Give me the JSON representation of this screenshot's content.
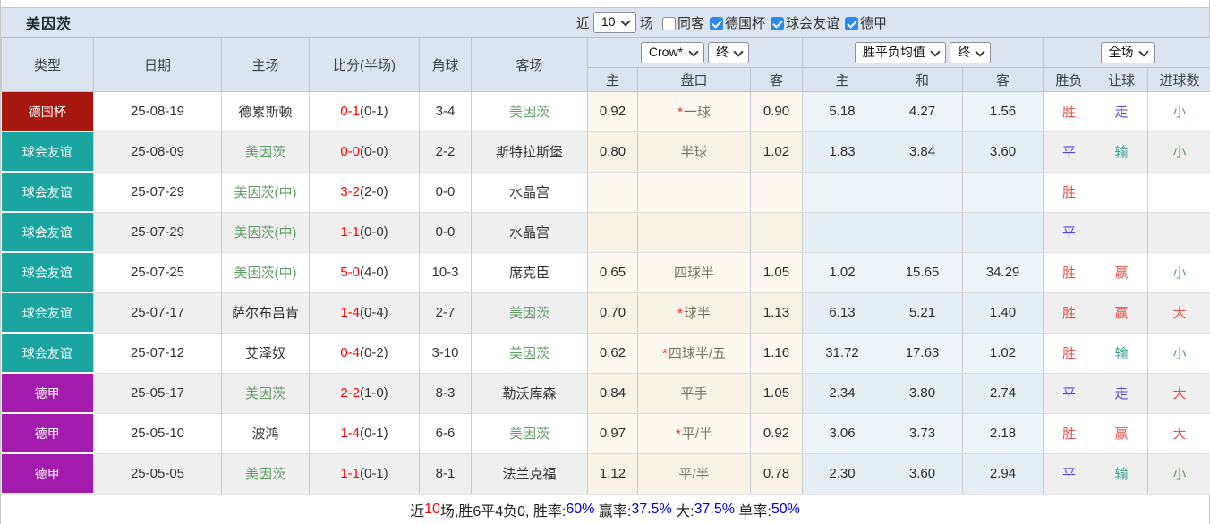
{
  "header": {
    "title": "美因茨",
    "recent_prefix": "近",
    "recent_value": "10",
    "recent_suffix": "场",
    "filters": [
      {
        "label": "同客",
        "checked": false
      },
      {
        "label": "德国杯",
        "checked": true
      },
      {
        "label": "球会友谊",
        "checked": true
      },
      {
        "label": "德甲",
        "checked": true
      }
    ]
  },
  "table": {
    "columns": [
      "类型",
      "日期",
      "主场",
      "比分(半场)",
      "角球",
      "客场"
    ],
    "asian_group": {
      "selects": [
        "Crow*",
        "终"
      ],
      "sub": [
        "主",
        "盘口",
        "客"
      ]
    },
    "europe_group": {
      "selects": [
        "胜平负均值",
        "终"
      ],
      "sub": [
        "主",
        "和",
        "客"
      ]
    },
    "result_group": {
      "selects": [
        "全场"
      ],
      "sub": [
        "胜负",
        "让球",
        "进球数"
      ]
    },
    "rows": [
      {
        "league": "德国杯",
        "league_key": "cup",
        "date": "25-08-19",
        "home": "德累斯顿",
        "home_self": false,
        "score": "0-1",
        "half": "(0-1)",
        "corners": "3-4",
        "away": "美因茨",
        "away_self": true,
        "ah_home": "0.92",
        "ah_star": true,
        "ah_line": "一球",
        "ah_away": "0.90",
        "eu_home": "5.18",
        "eu_draw": "4.27",
        "eu_away": "1.56",
        "result": "胜",
        "result_color": "red",
        "handicap_result": "走",
        "handicap_color": "blue",
        "goals_result": "小",
        "goals_color": "green"
      },
      {
        "league": "球会友谊",
        "league_key": "friendly",
        "date": "25-08-09",
        "home": "美因茨",
        "home_self": true,
        "score": "0-0",
        "half": "(0-0)",
        "corners": "2-2",
        "away": "斯特拉斯堡",
        "away_self": false,
        "ah_home": "0.80",
        "ah_star": false,
        "ah_line": "半球",
        "ah_away": "1.02",
        "eu_home": "1.83",
        "eu_draw": "3.84",
        "eu_away": "3.60",
        "result": "平",
        "result_color": "blue",
        "handicap_result": "输",
        "handicap_color": "teal",
        "goals_result": "小",
        "goals_color": "green"
      },
      {
        "league": "球会友谊",
        "league_key": "friendly",
        "date": "25-07-29",
        "home": "美因茨(中)",
        "home_self": true,
        "score": "3-2",
        "half": "(2-0)",
        "corners": "0-0",
        "away": "水晶宫",
        "away_self": false,
        "ah_home": "",
        "ah_star": false,
        "ah_line": "",
        "ah_away": "",
        "eu_home": "",
        "eu_draw": "",
        "eu_away": "",
        "result": "胜",
        "result_color": "red",
        "handicap_result": "",
        "handicap_color": "",
        "goals_result": "",
        "goals_color": ""
      },
      {
        "league": "球会友谊",
        "league_key": "friendly",
        "date": "25-07-29",
        "home": "美因茨(中)",
        "home_self": true,
        "score": "1-1",
        "half": "(0-0)",
        "corners": "0-0",
        "away": "水晶宫",
        "away_self": false,
        "ah_home": "",
        "ah_star": false,
        "ah_line": "",
        "ah_away": "",
        "eu_home": "",
        "eu_draw": "",
        "eu_away": "",
        "result": "平",
        "result_color": "blue",
        "handicap_result": "",
        "handicap_color": "",
        "goals_result": "",
        "goals_color": ""
      },
      {
        "league": "球会友谊",
        "league_key": "friendly",
        "date": "25-07-25",
        "home": "美因茨(中)",
        "home_self": true,
        "score": "5-0",
        "half": "(4-0)",
        "corners": "10-3",
        "away": "席克臣",
        "away_self": false,
        "ah_home": "0.65",
        "ah_star": false,
        "ah_line": "四球半",
        "ah_away": "1.05",
        "eu_home": "1.02",
        "eu_draw": "15.65",
        "eu_away": "34.29",
        "result": "胜",
        "result_color": "red",
        "handicap_result": "赢",
        "handicap_color": "red",
        "goals_result": "小",
        "goals_color": "green"
      },
      {
        "league": "球会友谊",
        "league_key": "friendly",
        "date": "25-07-17",
        "home": "萨尔布吕肯",
        "home_self": false,
        "score": "1-4",
        "half": "(0-4)",
        "corners": "2-7",
        "away": "美因茨",
        "away_self": true,
        "ah_home": "0.70",
        "ah_star": true,
        "ah_line": "球半",
        "ah_away": "1.13",
        "eu_home": "6.13",
        "eu_draw": "5.21",
        "eu_away": "1.40",
        "result": "胜",
        "result_color": "red",
        "handicap_result": "赢",
        "handicap_color": "red",
        "goals_result": "大",
        "goals_color": "red"
      },
      {
        "league": "球会友谊",
        "league_key": "friendly",
        "date": "25-07-12",
        "home": "艾泽奴",
        "home_self": false,
        "score": "0-4",
        "half": "(0-2)",
        "corners": "3-10",
        "away": "美因茨",
        "away_self": true,
        "ah_home": "0.62",
        "ah_star": true,
        "ah_line": "四球半/五",
        "ah_away": "1.16",
        "eu_home": "31.72",
        "eu_draw": "17.63",
        "eu_away": "1.02",
        "result": "胜",
        "result_color": "red",
        "handicap_result": "输",
        "handicap_color": "teal",
        "goals_result": "小",
        "goals_color": "green"
      },
      {
        "league": "德甲",
        "league_key": "league",
        "date": "25-05-17",
        "home": "美因茨",
        "home_self": true,
        "score": "2-2",
        "half": "(1-0)",
        "corners": "8-3",
        "away": "勒沃库森",
        "away_self": false,
        "ah_home": "0.84",
        "ah_star": false,
        "ah_line": "平手",
        "ah_away": "1.05",
        "eu_home": "2.34",
        "eu_draw": "3.80",
        "eu_away": "2.74",
        "result": "平",
        "result_color": "blue",
        "handicap_result": "走",
        "handicap_color": "blue",
        "goals_result": "大",
        "goals_color": "red"
      },
      {
        "league": "德甲",
        "league_key": "league",
        "date": "25-05-10",
        "home": "波鸿",
        "home_self": false,
        "score": "1-4",
        "half": "(0-1)",
        "corners": "6-6",
        "away": "美因茨",
        "away_self": true,
        "ah_home": "0.97",
        "ah_star": true,
        "ah_line": "平/半",
        "ah_away": "0.92",
        "eu_home": "3.06",
        "eu_draw": "3.73",
        "eu_away": "2.18",
        "result": "胜",
        "result_color": "red",
        "handicap_result": "赢",
        "handicap_color": "red",
        "goals_result": "大",
        "goals_color": "red"
      },
      {
        "league": "德甲",
        "league_key": "league",
        "date": "25-05-05",
        "home": "美因茨",
        "home_self": true,
        "score": "1-1",
        "half": "(0-1)",
        "corners": "8-1",
        "away": "法兰克福",
        "away_self": false,
        "ah_home": "1.12",
        "ah_star": false,
        "ah_line": "平/半",
        "ah_away": "0.78",
        "eu_home": "2.30",
        "eu_draw": "3.60",
        "eu_away": "2.94",
        "result": "平",
        "result_color": "blue",
        "handicap_result": "输",
        "handicap_color": "teal",
        "goals_result": "小",
        "goals_color": "green"
      }
    ]
  },
  "colors": {
    "cup": "#a6170e",
    "friendly": "#1ba5a0",
    "league": "#a31bac",
    "self_team": "#5f9b63",
    "score_red": "#ff0000",
    "result_red": "#e2544b",
    "result_blue": "#5b43d8",
    "result_teal": "#3f9d8d",
    "result_green": "#6d9b6d",
    "stat_blue": "#0000e0"
  },
  "footer": {
    "segments": [
      {
        "text": "近",
        "color": "black"
      },
      {
        "text": "10",
        "color": "red"
      },
      {
        "text": "场,胜6平4负0, 胜率:",
        "color": "black"
      },
      {
        "text": "60%",
        "color": "blue"
      },
      {
        "text": " 赢率:",
        "color": "black"
      },
      {
        "text": "37.5%",
        "color": "blue"
      },
      {
        "text": " 大:",
        "color": "black"
      },
      {
        "text": "37.5%",
        "color": "blue"
      },
      {
        "text": " 单率:",
        "color": "black"
      },
      {
        "text": "50%",
        "color": "blue"
      }
    ]
  }
}
